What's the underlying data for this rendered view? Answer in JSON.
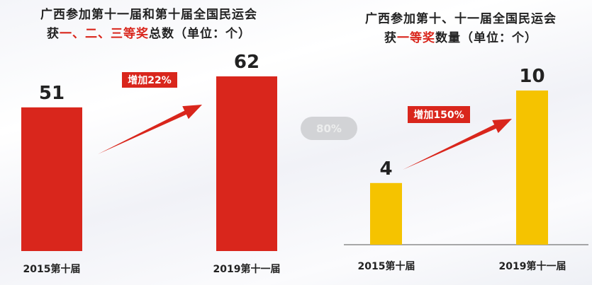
{
  "chart_data": [
    {
      "type": "bar",
      "title": "广西参加第十一届和第十届全国民运会获一、二、三等奖总数（单位：个）",
      "title_line1": "广西参加第十一届和第十届全国民运会",
      "title_line2_parts": [
        "获",
        "一、二、三等奖",
        "总数（单位：个）"
      ],
      "categories": [
        "2015第十届",
        "2019第十一届"
      ],
      "values": [
        51,
        62
      ],
      "bar_color": "#d9261c",
      "annotation": "增加22%",
      "ylim": [
        0,
        62
      ],
      "grid": false
    },
    {
      "type": "bar",
      "title": "广西参加第十、十一届全国民运会获一等奖数量（单位：个）",
      "title_line1": "广西参加第十、十一届全国民运会",
      "title_line2_parts": [
        "获",
        "一等奖",
        "数量（单位：个）"
      ],
      "categories": [
        "2015第十届",
        "2019第十一届"
      ],
      "values": [
        4,
        10
      ],
      "bar_color": "#f5c300",
      "annotation": "增加150%",
      "ylim": [
        0,
        10
      ],
      "grid": false
    }
  ],
  "zoom_indicator": "80%",
  "colors": {
    "accent_red": "#d9261c",
    "yellow": "#f5c300",
    "text": "#222222"
  }
}
